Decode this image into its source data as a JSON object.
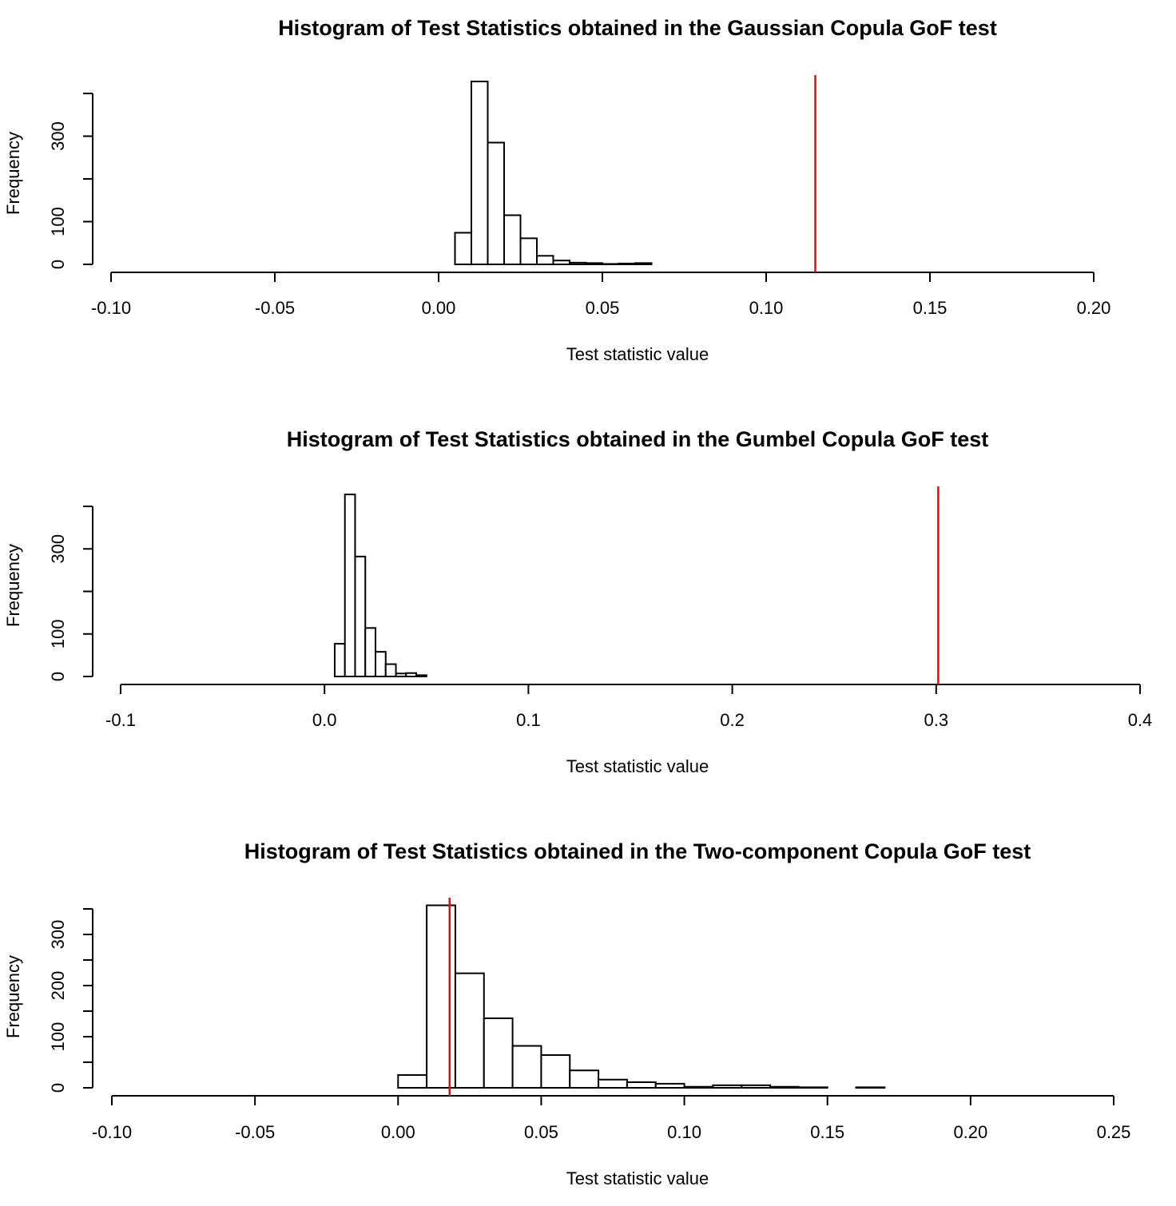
{
  "chart_data": [
    {
      "type": "bar",
      "subtype": "histogram",
      "title": "Histogram of Test Statistics obtained in the Gaussian Copula GoF test",
      "xlabel": "Test statistic value",
      "ylabel": "Frequency",
      "xlim": [
        -0.1,
        0.2
      ],
      "ylim": [
        0,
        400
      ],
      "x_ticks": [
        -0.1,
        -0.05,
        0.0,
        0.05,
        0.1,
        0.15,
        0.2
      ],
      "x_tick_labels": [
        "-0.10",
        "-0.05",
        "0.00",
        "0.05",
        "0.10",
        "0.15",
        "0.20"
      ],
      "y_ticks": [
        0,
        100,
        200,
        300,
        400
      ],
      "y_tick_labels": [
        "0",
        "100",
        "",
        "300",
        ""
      ],
      "bin_edges": [
        0.005,
        0.01,
        0.015,
        0.02,
        0.025,
        0.03,
        0.035,
        0.04,
        0.045,
        0.05,
        0.055,
        0.06,
        0.065
      ],
      "counts": [
        74,
        428,
        285,
        115,
        61,
        20,
        9,
        4,
        3,
        1,
        2,
        3
      ],
      "observed_statistic": 0.115,
      "observed_line_color": "#ff0000"
    },
    {
      "type": "bar",
      "subtype": "histogram",
      "title": "Histogram of Test Statistics obtained in the Gumbel Copula GoF test",
      "xlabel": "Test statistic value",
      "ylabel": "Frequency",
      "xlim": [
        -0.1,
        0.4
      ],
      "ylim": [
        0,
        400
      ],
      "x_ticks": [
        -0.1,
        0.0,
        0.1,
        0.2,
        0.3,
        0.4
      ],
      "x_tick_labels": [
        "-0.1",
        "0.0",
        "0.1",
        "0.2",
        "0.3",
        "0.4"
      ],
      "y_ticks": [
        0,
        100,
        200,
        300,
        400
      ],
      "y_tick_labels": [
        "0",
        "100",
        "",
        "300",
        ""
      ],
      "bin_edges": [
        0.005,
        0.01,
        0.015,
        0.02,
        0.025,
        0.03,
        0.035,
        0.04,
        0.045,
        0.05
      ],
      "counts": [
        77,
        428,
        282,
        114,
        58,
        29,
        7,
        8,
        3
      ],
      "observed_statistic": 0.301,
      "observed_line_color": "#ff0000"
    },
    {
      "type": "bar",
      "subtype": "histogram",
      "title": "Histogram of Test Statistics obtained in the Two-component Copula GoF test",
      "xlabel": "Test statistic value",
      "ylabel": "Frequency",
      "xlim": [
        -0.1,
        0.25
      ],
      "ylim": [
        0,
        350
      ],
      "x_ticks": [
        -0.1,
        -0.05,
        0.0,
        0.05,
        0.1,
        0.15,
        0.2,
        0.25
      ],
      "x_tick_labels": [
        "-0.10",
        "-0.05",
        "0.00",
        "0.05",
        "0.10",
        "0.15",
        "0.20",
        "0.25"
      ],
      "y_ticks": [
        0,
        50,
        100,
        150,
        200,
        250,
        300,
        350
      ],
      "y_tick_labels": [
        "0",
        "",
        "100",
        "",
        "200",
        "",
        "300",
        ""
      ],
      "bin_edges": [
        0.0,
        0.01,
        0.02,
        0.03,
        0.04,
        0.05,
        0.06,
        0.07,
        0.08,
        0.09,
        0.1,
        0.11,
        0.12,
        0.13,
        0.14,
        0.15,
        0.16,
        0.17
      ],
      "counts": [
        25,
        357,
        224,
        136,
        82,
        64,
        34,
        16,
        11,
        8,
        2,
        5,
        5,
        2,
        1,
        0,
        1
      ],
      "observed_statistic": 0.018,
      "observed_line_color": "#ff0000"
    }
  ]
}
